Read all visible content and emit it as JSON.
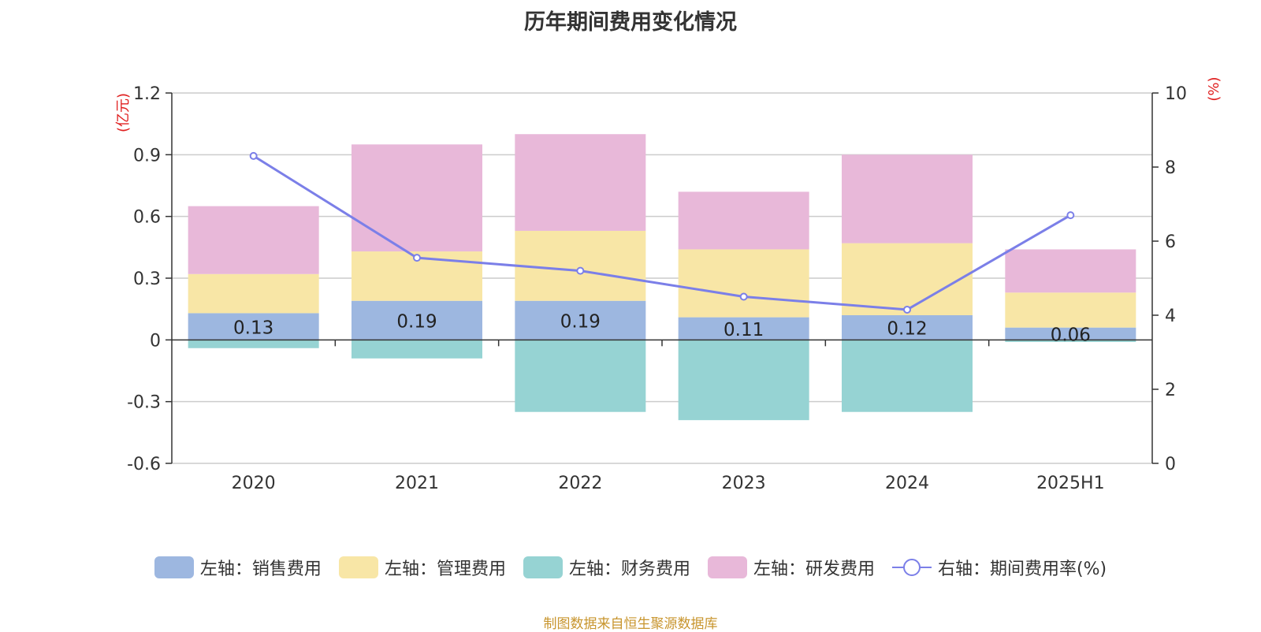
{
  "chart_data": {
    "type": "bar",
    "title": "历年期间费用变化情况",
    "categories": [
      "2020",
      "2021",
      "2022",
      "2023",
      "2024",
      "2025H1"
    ],
    "left_axis": {
      "unit_label": "(亿元)",
      "ylim": [
        -0.6,
        1.2
      ],
      "ticks": [
        "-0.6",
        "-0.3",
        "0",
        "0.3",
        "0.6",
        "0.9",
        "1.2"
      ],
      "tick_values": [
        -0.6,
        -0.3,
        0,
        0.3,
        0.6,
        0.9,
        1.2
      ]
    },
    "right_axis": {
      "unit_label": "(%)",
      "ylim": [
        0,
        10
      ],
      "ticks": [
        "0",
        "2",
        "4",
        "6",
        "8",
        "10"
      ],
      "tick_values": [
        0,
        2,
        4,
        6,
        8,
        10
      ]
    },
    "series": [
      {
        "name": "左轴：销售费用",
        "type": "bar",
        "color": "#9db7e0",
        "values": [
          0.13,
          0.19,
          0.19,
          0.11,
          0.12,
          0.06
        ],
        "labels": [
          "0.13",
          "0.19",
          "0.19",
          "0.11",
          "0.12",
          "0.06"
        ]
      },
      {
        "name": "左轴：管理费用",
        "type": "bar",
        "color": "#f8e6a6",
        "values": [
          0.19,
          0.24,
          0.34,
          0.33,
          0.35,
          0.17
        ]
      },
      {
        "name": "左轴：财务费用",
        "type": "bar",
        "color": "#96d3d3",
        "values": [
          -0.04,
          -0.09,
          -0.35,
          -0.39,
          -0.35,
          -0.01
        ]
      },
      {
        "name": "左轴：研发费用",
        "type": "bar",
        "color": "#e8b8d9",
        "values": [
          0.33,
          0.52,
          0.47,
          0.28,
          0.43,
          0.21
        ]
      },
      {
        "name": "右轴：期间费用率(%)",
        "type": "line",
        "color": "#7b7fe8",
        "values": [
          8.3,
          5.55,
          5.2,
          4.5,
          4.15,
          6.7
        ]
      }
    ],
    "legend_position": "bottom",
    "grid": true
  },
  "source_note": "制图数据来自恒生聚源数据库"
}
